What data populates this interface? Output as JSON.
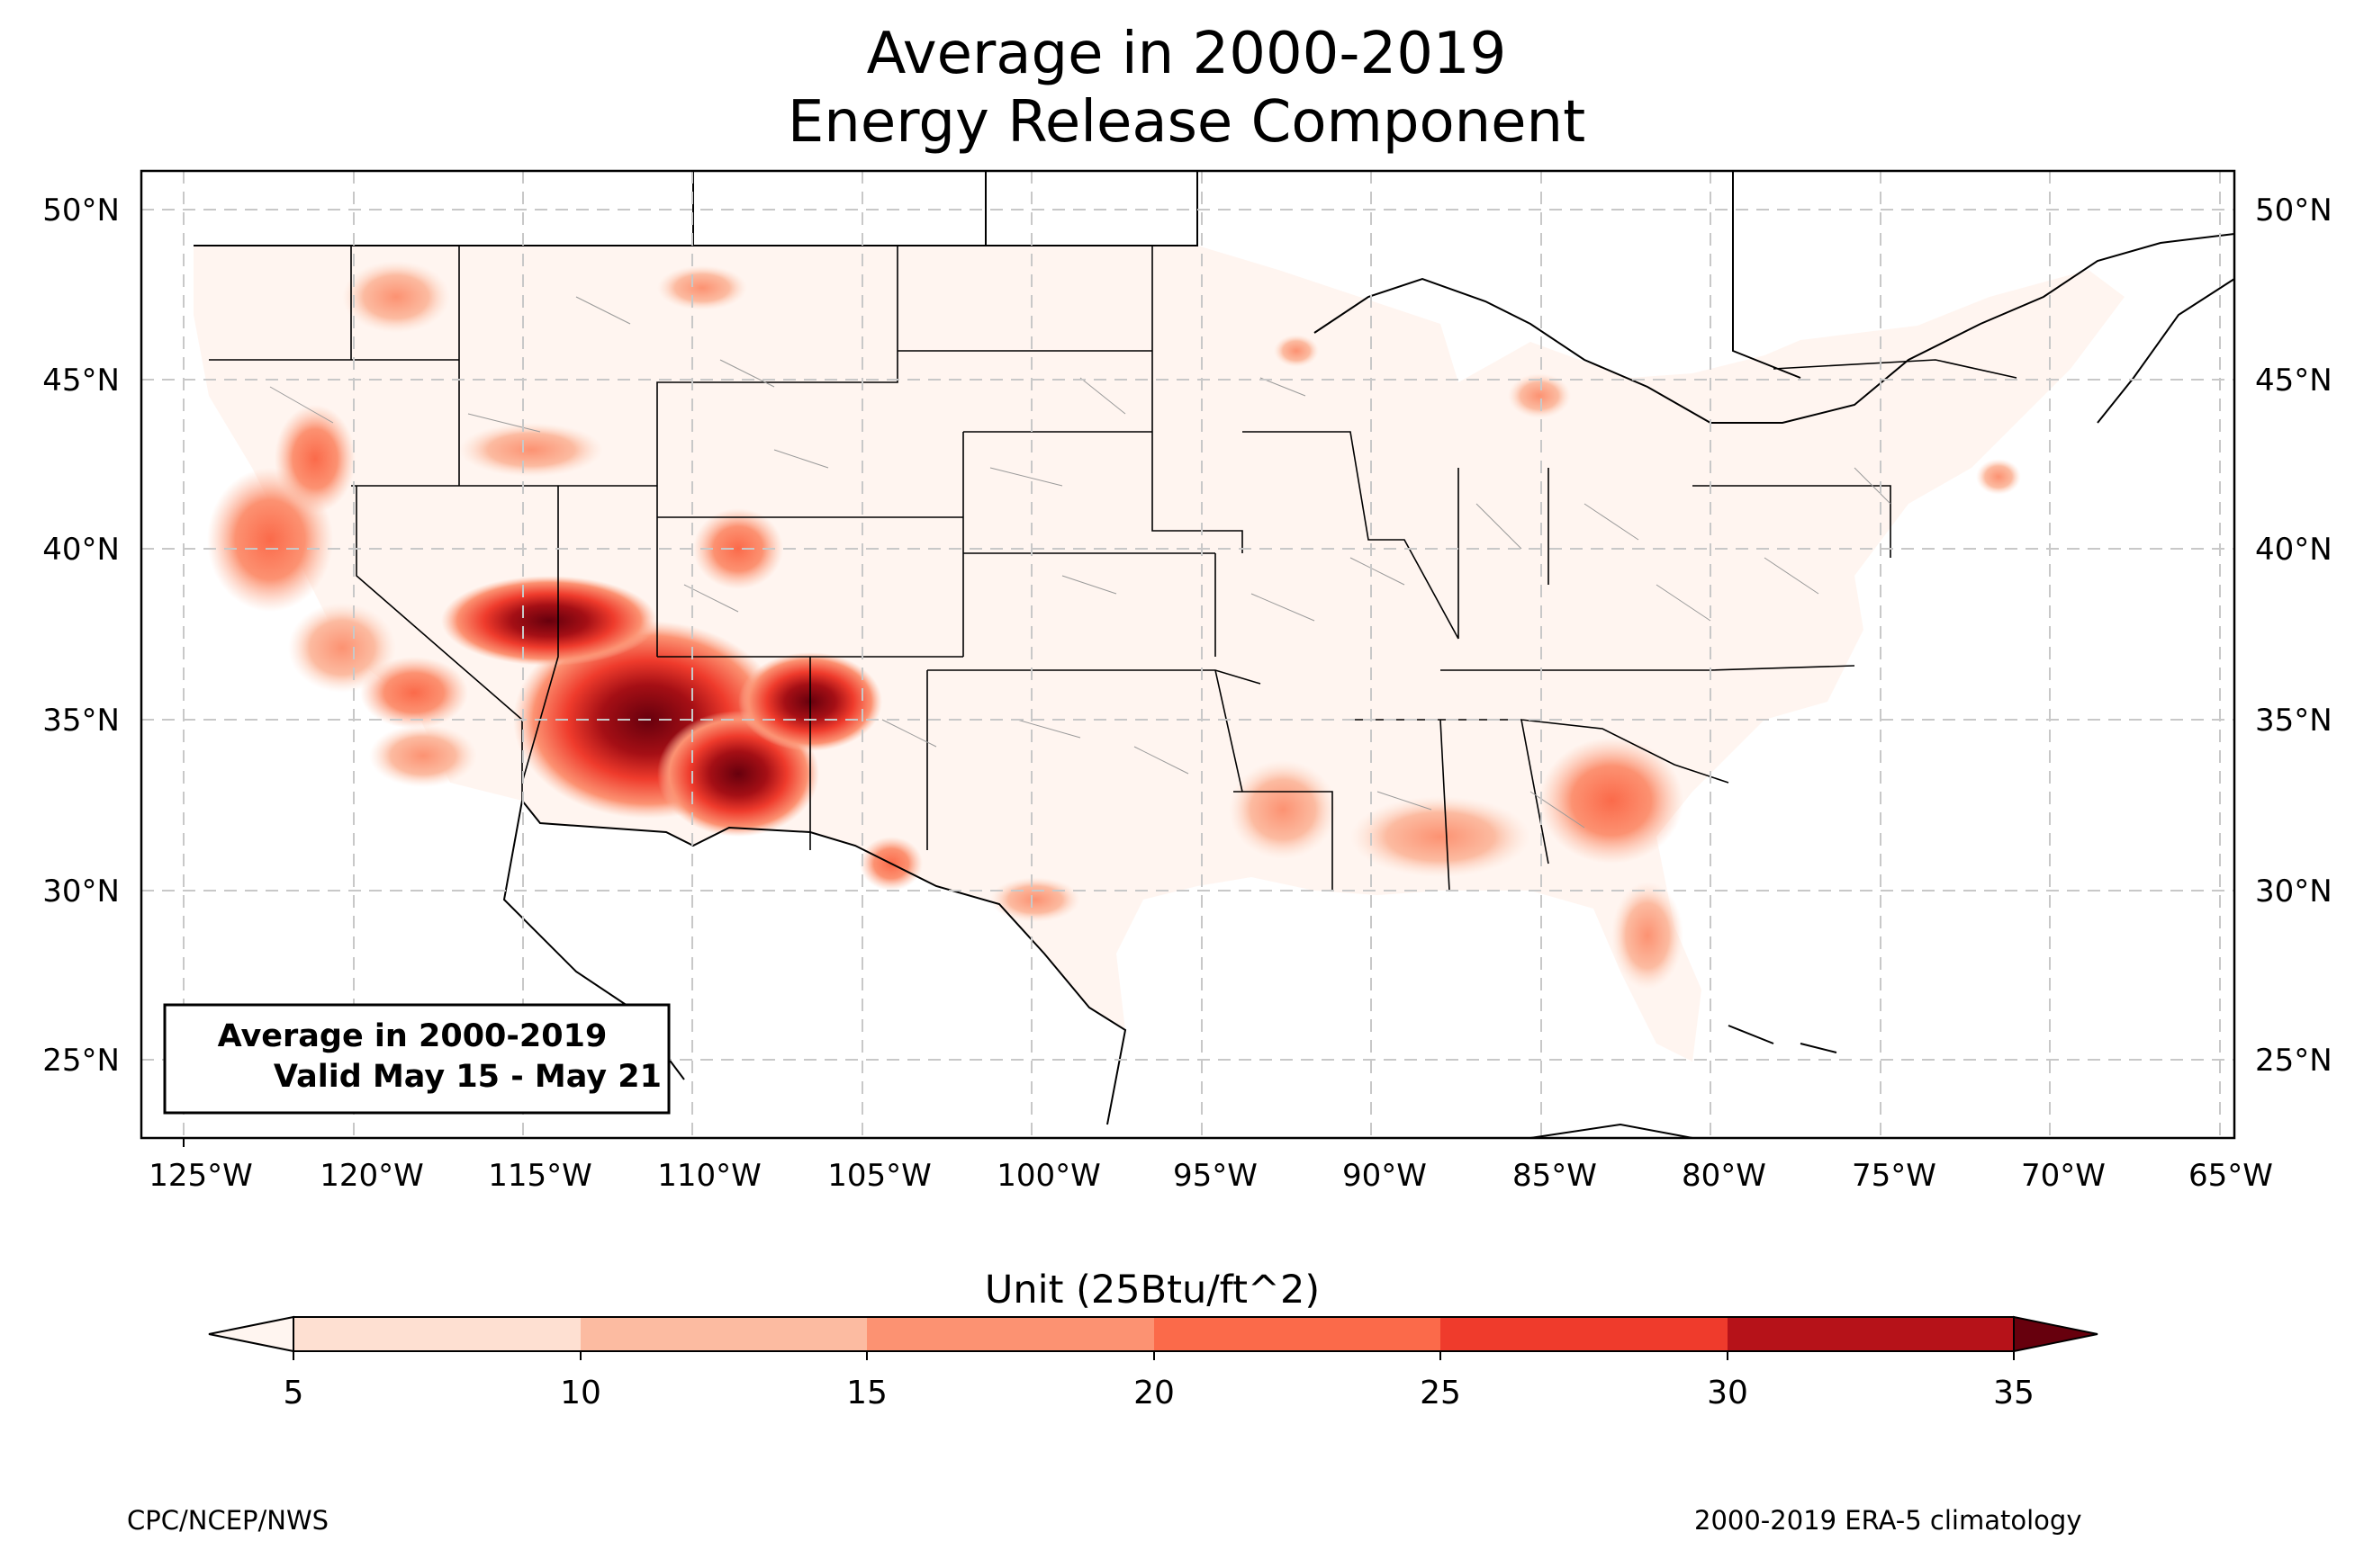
{
  "title": {
    "line1": "Average in 2000-2019",
    "line2": "Energy Release Component"
  },
  "info_box": {
    "line1": "Average in 2000-2019",
    "line2": "Valid May 15 - May 21"
  },
  "map": {
    "region": "Contiguous United States",
    "projection": "PlateCarree",
    "lon_range": [
      -126.5,
      -64.8
    ],
    "lat_range": [
      22.8,
      51.3
    ],
    "lon_ticks": [
      "125°W",
      "120°W",
      "115°W",
      "110°W",
      "105°W",
      "100°W",
      "95°W",
      "90°W",
      "85°W",
      "80°W",
      "75°W",
      "70°W",
      "65°W"
    ],
    "lat_ticks": [
      "50°N",
      "45°N",
      "40°N",
      "35°N",
      "30°N",
      "25°N"
    ],
    "gridlines": true
  },
  "colorbar": {
    "label": "Unit (25Btu/ft^2)",
    "ticks": [
      "5",
      "10",
      "15",
      "20",
      "25",
      "30",
      "35"
    ],
    "colors": [
      "#fee0d2",
      "#fcbba1",
      "#fc9272",
      "#fb6a4a",
      "#ef3b2c",
      "#cb181d",
      "#a50f15"
    ],
    "under_color": "#fff5f0",
    "over_color": "#67000d",
    "extend": "both"
  },
  "footer": {
    "left": "CPC/NCEP/NWS",
    "right": "2000-2019 ERA-5 climatology"
  }
}
